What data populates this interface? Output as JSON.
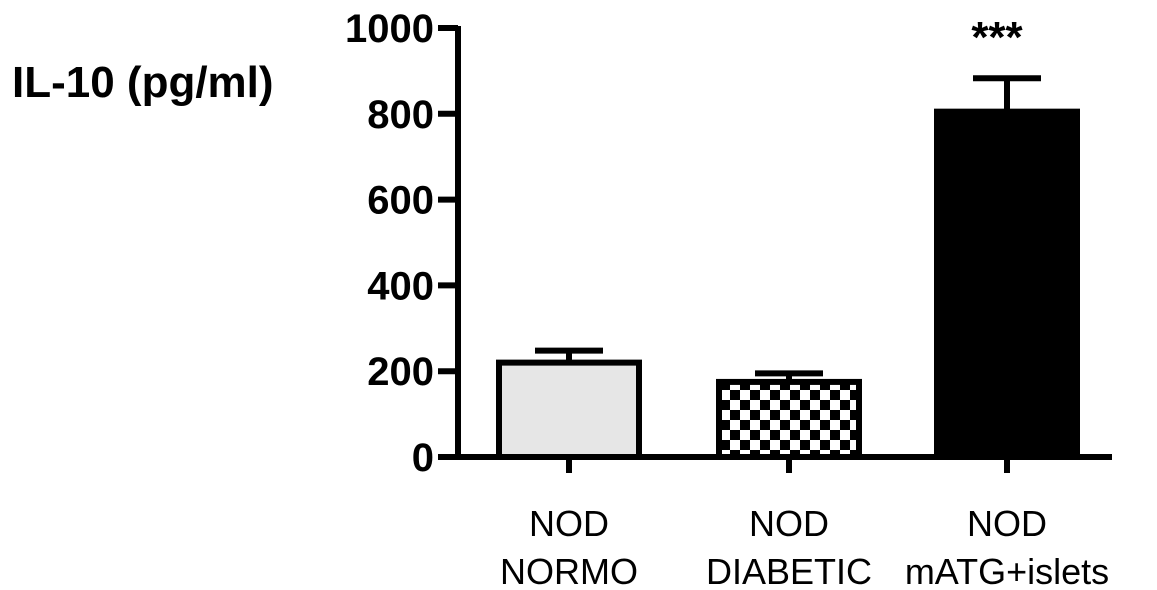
{
  "chart_data": {
    "type": "bar",
    "title": "",
    "ylabel": "IL-10 (pg/ml)",
    "xlabel": "",
    "ylim": [
      0,
      1000
    ],
    "yticks": [
      "0",
      "200",
      "400",
      "600",
      "800",
      "1000"
    ],
    "categories": [
      [
        "NOD",
        "NORMO"
      ],
      [
        "NOD",
        "DIABETIC"
      ],
      [
        "NOD",
        "mATG+islets"
      ]
    ],
    "values": [
      220,
      175,
      805
    ],
    "errors": [
      28,
      20,
      78
    ],
    "fills": [
      "light-gray",
      "checkerboard",
      "black"
    ],
    "significance": [
      "",
      "",
      "***"
    ],
    "colors": {
      "axis": "#000000",
      "light_gray": "#e6e6e6",
      "black": "#000000"
    },
    "grid": false,
    "legend": "none"
  }
}
